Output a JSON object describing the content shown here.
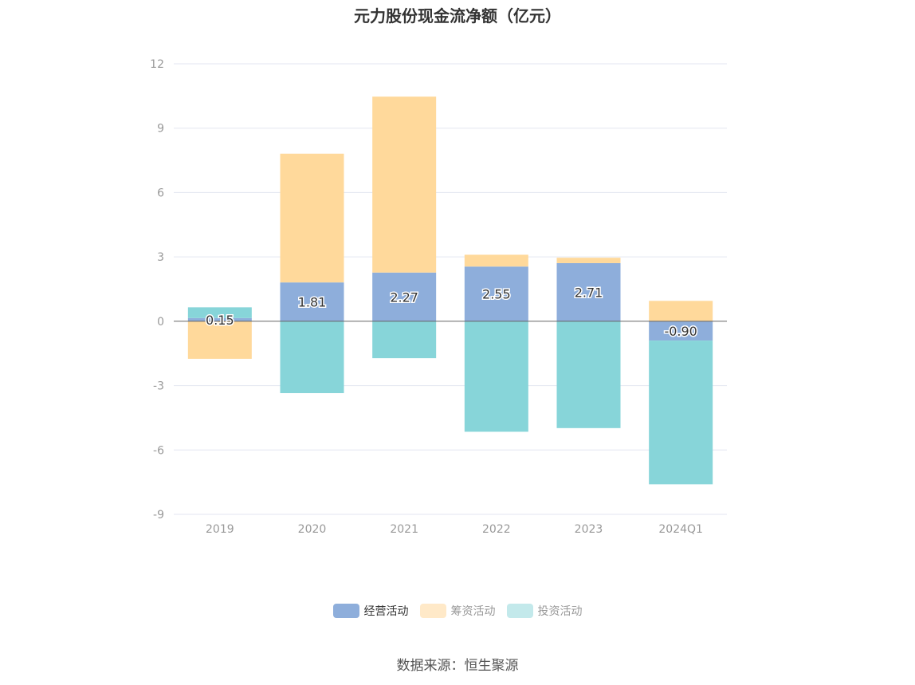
{
  "title": "元力股份现金流净额（亿元）",
  "source": "数据来源：恒生聚源",
  "colors": {
    "operating": "#8EAEDB",
    "financing": "#FFD99B",
    "investing": "#87D5D9",
    "financing_legend": "#FFE9C8",
    "investing_legend": "#C3E9EB",
    "grid": "#E3E6F0",
    "zero_line": "#666666",
    "axis_text": "#999999"
  },
  "legend": [
    {
      "key": "operating",
      "label": "经营活动",
      "active": true
    },
    {
      "key": "financing",
      "label": "筹资活动",
      "active": false
    },
    {
      "key": "investing",
      "label": "投资活动",
      "active": false
    }
  ],
  "chart_data": {
    "type": "bar",
    "stacked": true,
    "title": "元力股份现金流净额（亿元）",
    "xlabel": "",
    "ylabel": "",
    "ylim": [
      -9,
      12
    ],
    "yticks": [
      12,
      9,
      6,
      3,
      0,
      -3,
      -6,
      -9
    ],
    "categories": [
      "2019",
      "2020",
      "2021",
      "2022",
      "2023",
      "2024Q1"
    ],
    "series": [
      {
        "name": "经营活动",
        "key": "operating",
        "values": [
          0.15,
          1.81,
          2.27,
          2.55,
          2.71,
          -0.9
        ],
        "labels": [
          "0.15",
          "1.81",
          "2.27",
          "2.55",
          "2.71",
          "-0.90"
        ]
      },
      {
        "name": "筹资活动",
        "key": "financing",
        "values": [
          -1.75,
          6.0,
          8.2,
          0.55,
          0.25,
          0.95
        ]
      },
      {
        "name": "投资活动",
        "key": "investing",
        "values": [
          0.5,
          -3.35,
          -1.72,
          -5.15,
          -4.98,
          -6.7
        ]
      }
    ]
  }
}
